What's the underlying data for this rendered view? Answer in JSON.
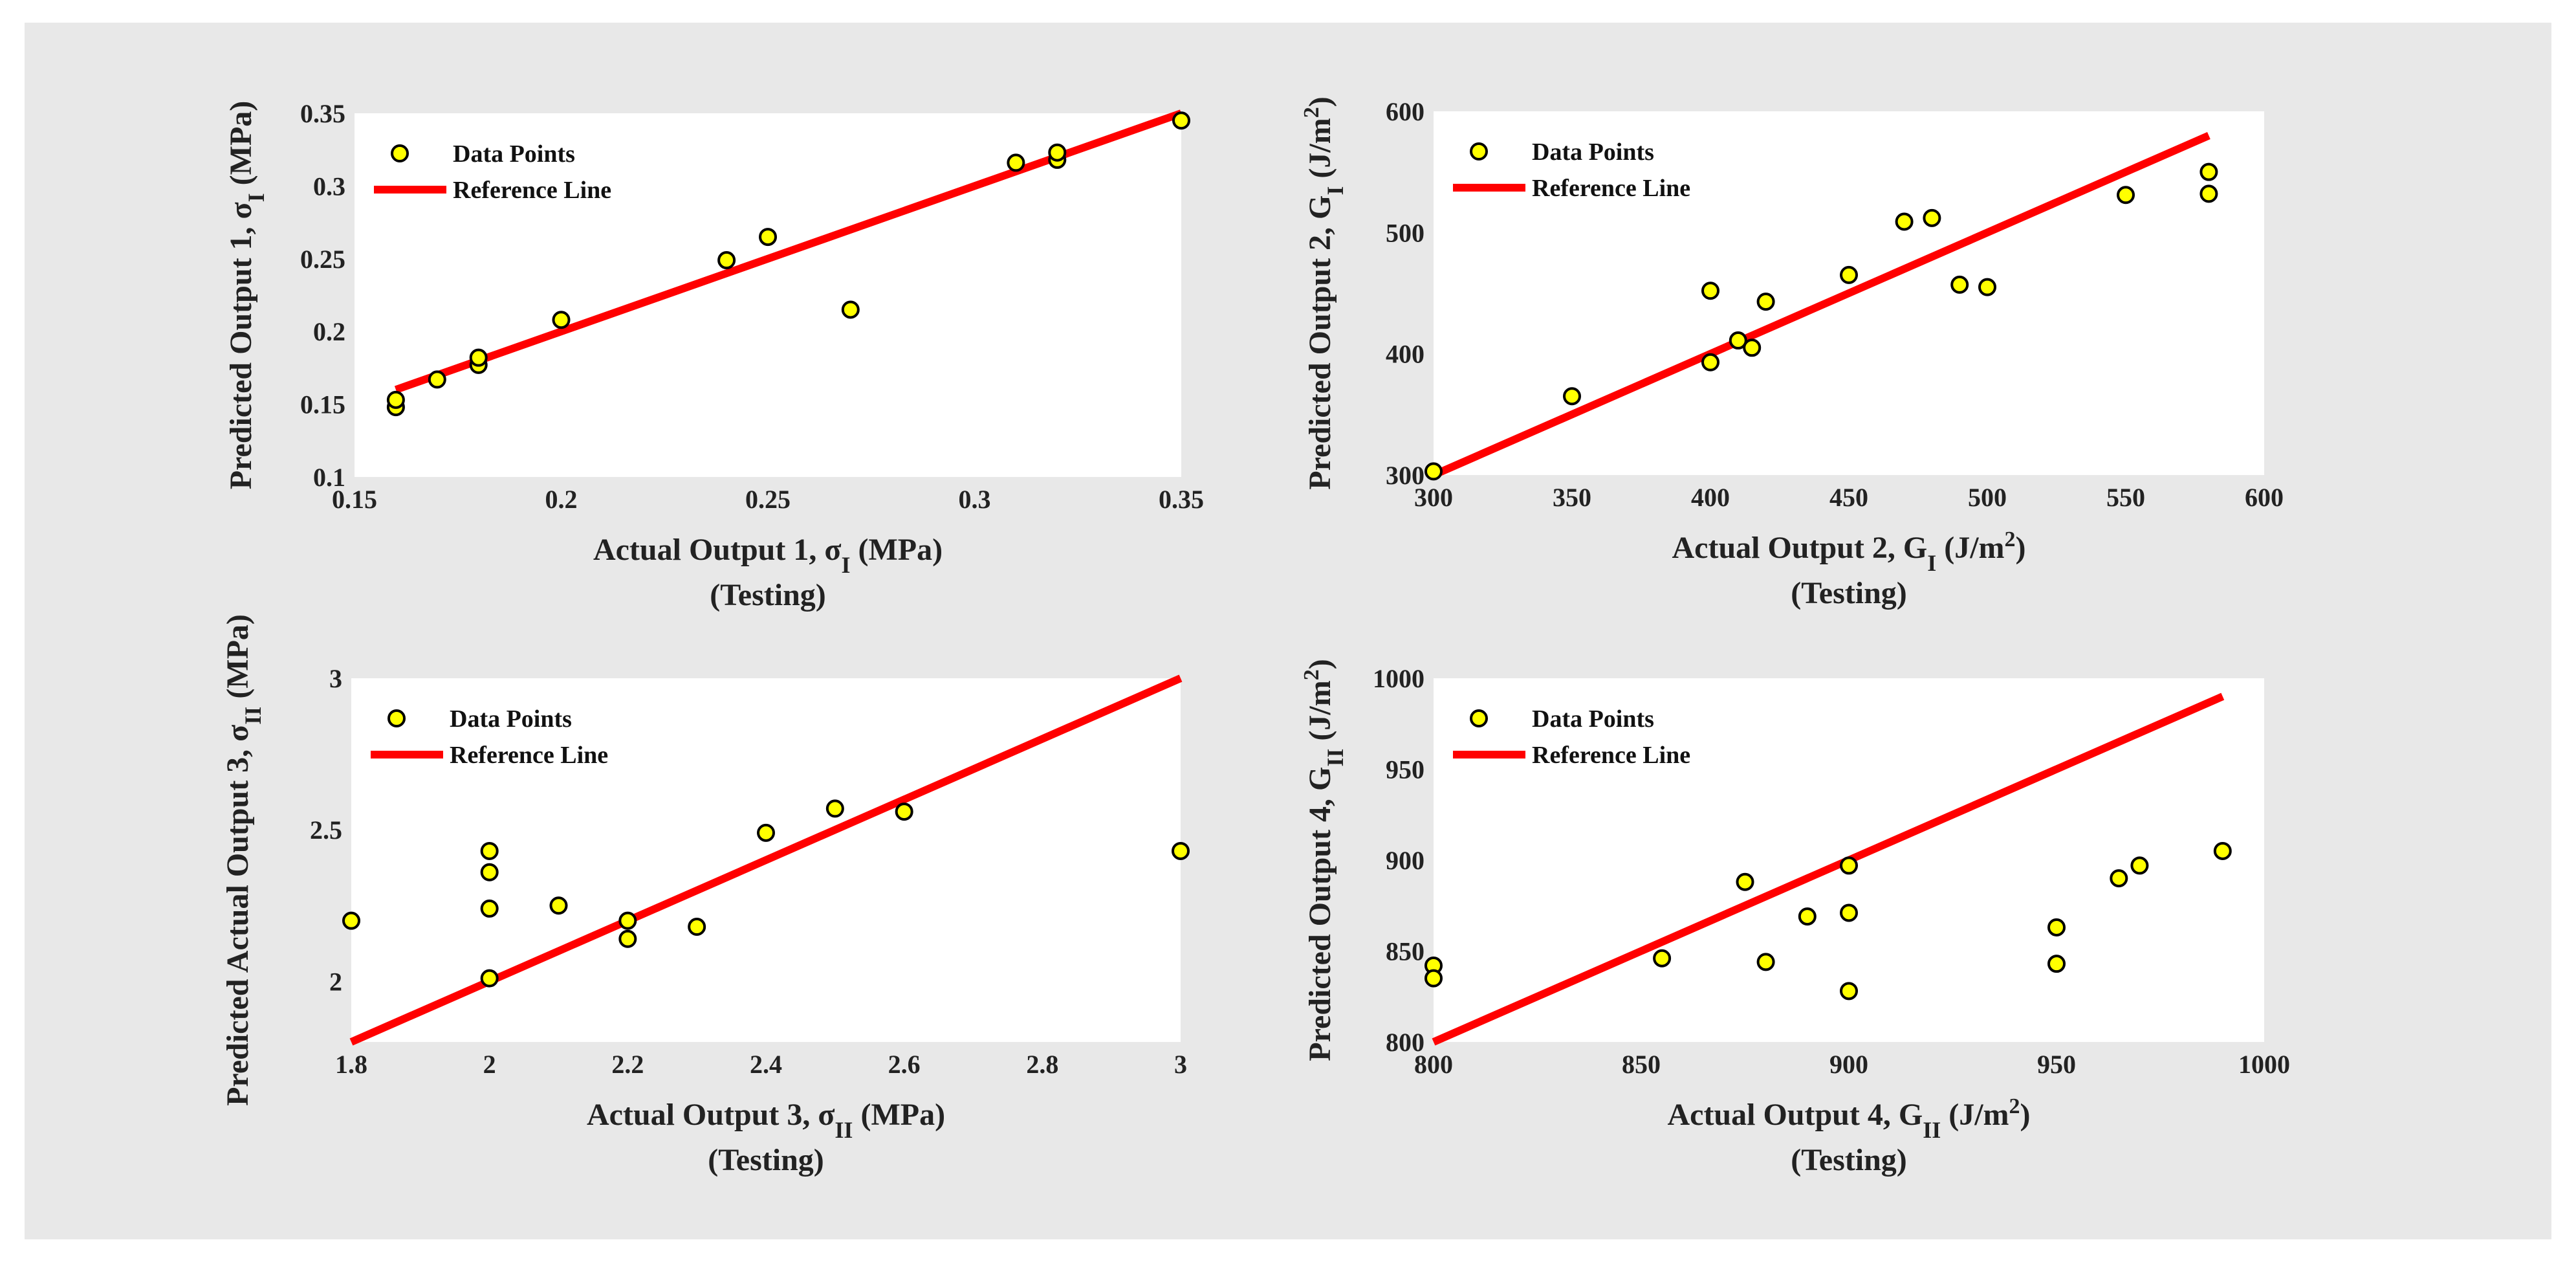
{
  "colors": {
    "panel_background": "#e8e8e8",
    "plot_background": "#ffffff",
    "marker_fill": "#ffff00",
    "marker_edge": "#000000",
    "reference_line": "#ff0000"
  },
  "chart_data": [
    {
      "type": "scatter",
      "xlabel": {
        "main": "Actual Output 1, σ",
        "sub": "I",
        "after": " (MPa)"
      },
      "xlabel_line2": "(Testing)",
      "ylabel": {
        "main": "Predicted Output 1, σ",
        "sub": "I",
        "after": " (MPa)"
      },
      "xlim": [
        0.15,
        0.35
      ],
      "ylim": [
        0.1,
        0.35
      ],
      "xticks": [
        0.15,
        0.2,
        0.25,
        0.3,
        0.35
      ],
      "xtick_labels": [
        "0.15",
        "0.2",
        "0.25",
        "0.3",
        "0.35"
      ],
      "yticks": [
        0.1,
        0.15,
        0.2,
        0.25,
        0.3,
        0.35
      ],
      "ytick_labels": [
        "0.1",
        "0.15",
        "0.2",
        "0.25",
        "0.3",
        "0.35"
      ],
      "legend": {
        "placement": "top-left",
        "entries": [
          "Data Points",
          "Reference Line"
        ]
      },
      "grid": false,
      "series": [
        {
          "name": "Data Points",
          "kind": "scatter",
          "points": [
            [
              0.16,
              0.148
            ],
            [
              0.16,
              0.153
            ],
            [
              0.17,
              0.167
            ],
            [
              0.18,
              0.177
            ],
            [
              0.18,
              0.182
            ],
            [
              0.2,
              0.208
            ],
            [
              0.24,
              0.249
            ],
            [
              0.25,
              0.265
            ],
            [
              0.27,
              0.215
            ],
            [
              0.31,
              0.316
            ],
            [
              0.32,
              0.318
            ],
            [
              0.32,
              0.323
            ],
            [
              0.35,
              0.345
            ]
          ]
        },
        {
          "name": "Reference Line",
          "kind": "line",
          "points": [
            [
              0.16,
              0.16
            ],
            [
              0.35,
              0.35
            ]
          ]
        }
      ]
    },
    {
      "type": "scatter",
      "xlabel": {
        "main": "Actual Output 2, G",
        "sub": "I",
        "after": " (J/m",
        "sup": "2",
        "close": ")"
      },
      "xlabel_line2": "(Testing)",
      "ylabel": {
        "main": "Predicted Output 2, G",
        "sub": "I",
        "after": " (J/m",
        "sup": "2",
        "close": ")"
      },
      "xlim": [
        300,
        600
      ],
      "ylim": [
        300,
        600
      ],
      "xticks": [
        300,
        350,
        400,
        450,
        500,
        550,
        600
      ],
      "xtick_labels": [
        "300",
        "350",
        "400",
        "450",
        "500",
        "550",
        "600"
      ],
      "yticks": [
        300,
        400,
        500,
        600
      ],
      "ytick_labels": [
        "300",
        "400",
        "500",
        "600"
      ],
      "legend": {
        "placement": "top-left",
        "entries": [
          "Data Points",
          "Reference Line"
        ]
      },
      "grid": false,
      "series": [
        {
          "name": "Data Points",
          "kind": "scatter",
          "points": [
            [
              300,
              303
            ],
            [
              350,
              365
            ],
            [
              400,
              452
            ],
            [
              400,
              393
            ],
            [
              410,
              411
            ],
            [
              415,
              405
            ],
            [
              420,
              443
            ],
            [
              450,
              465
            ],
            [
              470,
              509
            ],
            [
              480,
              512
            ],
            [
              490,
              457
            ],
            [
              500,
              455
            ],
            [
              550,
              531
            ],
            [
              580,
              550
            ],
            [
              580,
              532
            ]
          ]
        },
        {
          "name": "Reference Line",
          "kind": "line",
          "points": [
            [
              300,
              300
            ],
            [
              580,
              580
            ]
          ]
        }
      ]
    },
    {
      "type": "scatter",
      "xlabel": {
        "main": "Actual Output 3, σ",
        "sub": "II",
        "after": " (MPa)"
      },
      "xlabel_line2": "(Testing)",
      "ylabel": {
        "main": "Predicted Actual Output 3, σ",
        "sub": "II",
        "after": " (MPa)"
      },
      "xlim": [
        1.8,
        3
      ],
      "ylim": [
        1.8,
        3
      ],
      "xticks": [
        1.8,
        2,
        2.2,
        2.4,
        2.6,
        2.8,
        3
      ],
      "xtick_labels": [
        "1.8",
        "2",
        "2.2",
        "2.4",
        "2.6",
        "2.8",
        "3"
      ],
      "yticks": [
        2,
        2.5,
        3
      ],
      "ytick_labels": [
        "2",
        "2.5",
        "3"
      ],
      "legend": {
        "placement": "top-left",
        "entries": [
          "Data Points",
          "Reference Line"
        ]
      },
      "grid": false,
      "series": [
        {
          "name": "Data Points",
          "kind": "scatter",
          "points": [
            [
              1.8,
              2.2
            ],
            [
              2.0,
              2.43
            ],
            [
              2.0,
              2.36
            ],
            [
              2.0,
              2.24
            ],
            [
              2.0,
              2.01
            ],
            [
              2.1,
              2.25
            ],
            [
              2.2,
              2.2
            ],
            [
              2.2,
              2.14
            ],
            [
              2.3,
              2.18
            ],
            [
              2.4,
              2.49
            ],
            [
              2.5,
              2.57
            ],
            [
              2.6,
              2.56
            ],
            [
              3.0,
              2.43
            ]
          ]
        },
        {
          "name": "Reference Line",
          "kind": "line",
          "points": [
            [
              1.8,
              1.8
            ],
            [
              3.0,
              3.0
            ]
          ]
        }
      ]
    },
    {
      "type": "scatter",
      "xlabel": {
        "main": "Actual Output 4, G",
        "sub": "II",
        "after": " (J/m",
        "sup": "2",
        "close": ")"
      },
      "xlabel_line2": "(Testing)",
      "ylabel": {
        "main": "Predicted Output 4, G",
        "sub": "II",
        "after": " (J/m",
        "sup": "2",
        "close": ")"
      },
      "xlim": [
        800,
        1000
      ],
      "ylim": [
        800,
        1000
      ],
      "xticks": [
        800,
        850,
        900,
        950,
        1000
      ],
      "xtick_labels": [
        "800",
        "850",
        "900",
        "950",
        "1000"
      ],
      "yticks": [
        800,
        850,
        900,
        950,
        1000
      ],
      "ytick_labels": [
        "800",
        "850",
        "900",
        "950",
        "1000"
      ],
      "legend": {
        "placement": "top-left",
        "entries": [
          "Data Points",
          "Reference Line"
        ]
      },
      "grid": false,
      "series": [
        {
          "name": "Data Points",
          "kind": "scatter",
          "points": [
            [
              800,
              842
            ],
            [
              800,
              835
            ],
            [
              855,
              846
            ],
            [
              875,
              888
            ],
            [
              880,
              844
            ],
            [
              890,
              869
            ],
            [
              900,
              897
            ],
            [
              900,
              871
            ],
            [
              900,
              828
            ],
            [
              950,
              863
            ],
            [
              950,
              843
            ],
            [
              965,
              890
            ],
            [
              970,
              897
            ],
            [
              990,
              905
            ]
          ]
        },
        {
          "name": "Reference Line",
          "kind": "line",
          "points": [
            [
              800,
              800
            ],
            [
              990,
              990
            ]
          ]
        }
      ]
    }
  ]
}
